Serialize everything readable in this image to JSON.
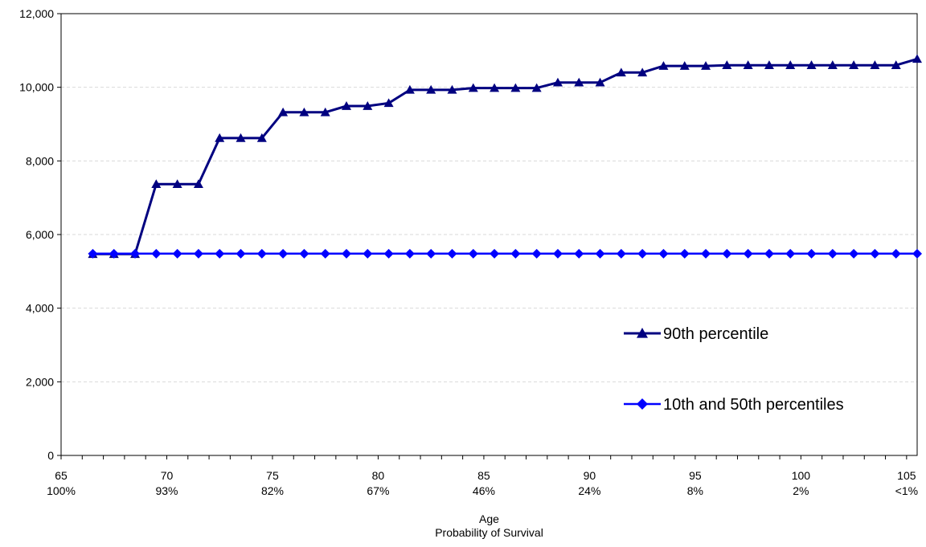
{
  "chart_data": {
    "type": "line",
    "title": "",
    "xlabel": "Age",
    "xlabel2": "Probability of Survival",
    "ylabel": "",
    "ylim": [
      0,
      12000
    ],
    "xlim": [
      65,
      105.5
    ],
    "yticks": [
      0,
      2000,
      4000,
      6000,
      8000,
      10000,
      12000
    ],
    "ytick_labels": [
      "0",
      "2,000",
      "4,000",
      "6,000",
      "8,000",
      "10,000",
      "12,000"
    ],
    "xticks": [
      {
        "age": "65",
        "survival": "100%"
      },
      {
        "age": "70",
        "survival": "93%"
      },
      {
        "age": "75",
        "survival": "82%"
      },
      {
        "age": "80",
        "survival": "67%"
      },
      {
        "age": "85",
        "survival": "46%"
      },
      {
        "age": "90",
        "survival": "24%"
      },
      {
        "age": "95",
        "survival": "8%"
      },
      {
        "age": "100",
        "survival": "2%"
      },
      {
        "age": "105",
        "survival": "<1%"
      }
    ],
    "x": [
      66.5,
      67.5,
      68.5,
      69.5,
      70.5,
      71.5,
      72.5,
      73.5,
      74.5,
      75.5,
      76.5,
      77.5,
      78.5,
      79.5,
      80.5,
      81.5,
      82.5,
      83.5,
      84.5,
      85.5,
      86.5,
      87.5,
      88.5,
      89.5,
      90.5,
      91.5,
      92.5,
      93.5,
      94.5,
      95.5,
      96.5,
      97.5,
      98.5,
      99.5,
      100.5,
      101.5,
      102.5,
      103.5,
      104.5,
      105.5
    ],
    "grid": "horizontal dashed",
    "legend_position": "center-right",
    "series": [
      {
        "name": "90th percentile",
        "color": "#000080",
        "marker": "triangle",
        "values": [
          5470,
          5470,
          5470,
          7370,
          7370,
          7370,
          8620,
          8620,
          8620,
          9320,
          9320,
          9320,
          9490,
          9490,
          9570,
          9930,
          9930,
          9930,
          9980,
          9980,
          9980,
          9980,
          10130,
          10130,
          10130,
          10400,
          10400,
          10580,
          10580,
          10580,
          10600,
          10600,
          10600,
          10600,
          10600,
          10600,
          10600,
          10600,
          10600,
          10770
        ]
      },
      {
        "name": "10th and 50th percentiles",
        "color": "#0000FF",
        "marker": "diamond",
        "values": [
          5480,
          5480,
          5480,
          5480,
          5480,
          5480,
          5480,
          5480,
          5480,
          5480,
          5480,
          5480,
          5480,
          5480,
          5480,
          5480,
          5480,
          5480,
          5480,
          5480,
          5480,
          5480,
          5480,
          5480,
          5480,
          5480,
          5480,
          5480,
          5480,
          5480,
          5480,
          5480,
          5480,
          5480,
          5480,
          5480,
          5480,
          5480,
          5480,
          5480
        ]
      }
    ]
  }
}
